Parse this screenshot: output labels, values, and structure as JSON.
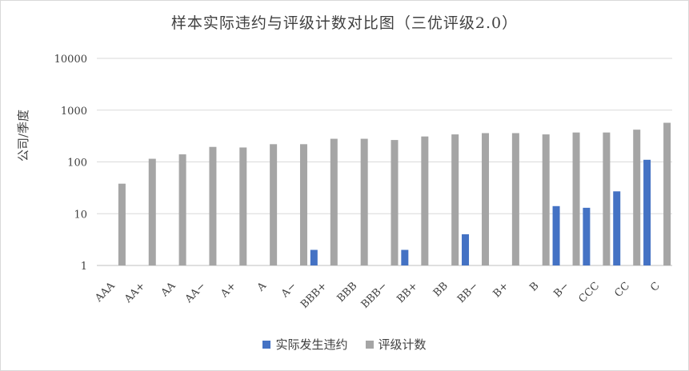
{
  "chart_data": {
    "type": "bar",
    "title": "样本实际违约与评级计数对比图（三优评级2.0）",
    "ylabel": "公司/季度",
    "xlabel": "",
    "yscale": "log",
    "ylim": [
      1,
      10000
    ],
    "yticks": [
      "1",
      "10",
      "100",
      "1000",
      "10000"
    ],
    "grid": true,
    "legend_position": "bottom",
    "categories": [
      "AAA",
      "AA+",
      "AA",
      "AA−",
      "A+",
      "A",
      "A−",
      "BBB+",
      "BBB",
      "BBB−",
      "BB+",
      "BB",
      "BB−",
      "B+",
      "B",
      "B−",
      "CCC",
      "CC",
      "C"
    ],
    "series": [
      {
        "name": "实际发生违约",
        "color": "#4472c4",
        "values": [
          null,
          null,
          null,
          null,
          null,
          null,
          null,
          2,
          null,
          null,
          2,
          null,
          4,
          null,
          null,
          14,
          13,
          27,
          110
        ]
      },
      {
        "name": "评级计数",
        "color": "#a5a5a5",
        "values": [
          38,
          115,
          140,
          195,
          190,
          220,
          220,
          280,
          280,
          265,
          310,
          340,
          360,
          360,
          340,
          370,
          370,
          420,
          570
        ]
      }
    ]
  }
}
